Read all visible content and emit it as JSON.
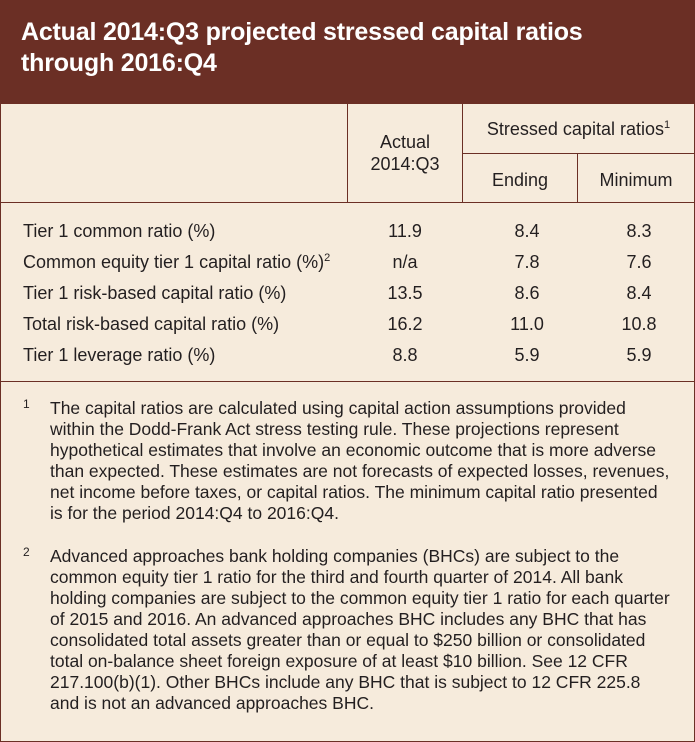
{
  "title": "Actual 2014:Q3 projected stressed capital ratios through 2016:Q4",
  "header": {
    "actual_line1": "Actual",
    "actual_line2": "2014:Q3",
    "stressed_label": "Stressed capital ratios",
    "stressed_footnote": "1",
    "ending": "Ending",
    "minimum": "Minimum"
  },
  "rows": [
    {
      "label": "Tier 1 common ratio (%)",
      "sup": "",
      "actual": "11.9",
      "ending": "8.4",
      "minimum": "8.3"
    },
    {
      "label": "Common equity tier 1 capital ratio (%)",
      "sup": "2",
      "actual": "n/a",
      "ending": "7.8",
      "minimum": "7.6"
    },
    {
      "label": "Tier 1 risk-based capital ratio (%)",
      "sup": "",
      "actual": "13.5",
      "ending": "8.6",
      "minimum": "8.4"
    },
    {
      "label": "Total risk-based capital ratio (%)",
      "sup": "",
      "actual": "16.2",
      "ending": "11.0",
      "minimum": "10.8"
    },
    {
      "label": "Tier 1 leverage ratio (%)",
      "sup": "",
      "actual": "8.8",
      "ending": "5.9",
      "minimum": "5.9"
    }
  ],
  "footnotes": [
    {
      "mark": "1",
      "text": "The capital ratios are calculated using capital action assumptions provided within the Dodd-Frank Act stress testing rule. These projections represent hypothetical estimates that involve an economic outcome that is more adverse than expected. These estimates are not forecasts of expected losses, revenues, net income before taxes, or capital ratios. The minimum capital ratio presented is for the period 2014:Q4 to 2016:Q4."
    },
    {
      "mark": "2",
      "text": "Advanced approaches bank holding companies (BHCs) are subject to the common equity tier 1 ratio for the third and fourth quarter of 2014. All bank holding companies are subject to the common equity tier 1 ratio for each quarter of 2015 and 2016. An advanced approaches BHC includes any BHC that has consolidated total assets greater than or equal to $250 billion or consolidated total on-balance sheet foreign exposure of at least $10 billion. See 12 CFR 217.100(b)(1). Other BHCs include any BHC that is subject to 12 CFR 225.8 and is not an advanced approaches BHC."
    }
  ],
  "colors": {
    "title_bg": "#6b2f25",
    "panel_bg": "#f6ebdc",
    "rule": "#6b2f25"
  }
}
